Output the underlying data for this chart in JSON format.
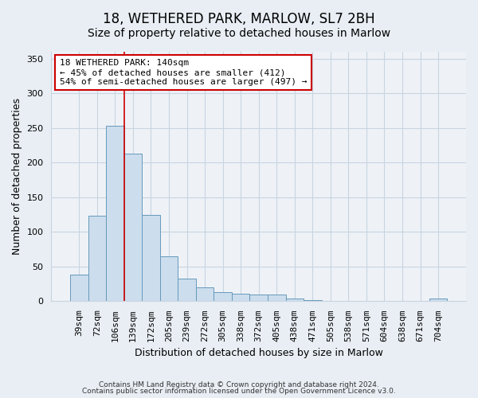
{
  "title": "18, WETHERED PARK, MARLOW, SL7 2BH",
  "subtitle": "Size of property relative to detached houses in Marlow",
  "xlabel": "Distribution of detached houses by size in Marlow",
  "ylabel": "Number of detached properties",
  "categories": [
    "39sqm",
    "72sqm",
    "106sqm",
    "139sqm",
    "172sqm",
    "205sqm",
    "239sqm",
    "272sqm",
    "305sqm",
    "338sqm",
    "372sqm",
    "405sqm",
    "438sqm",
    "471sqm",
    "505sqm",
    "538sqm",
    "571sqm",
    "604sqm",
    "638sqm",
    "671sqm",
    "704sqm"
  ],
  "values": [
    38,
    123,
    253,
    213,
    124,
    65,
    33,
    20,
    13,
    11,
    10,
    10,
    4,
    2,
    1,
    0,
    0,
    0,
    0,
    0,
    4
  ],
  "bar_facecolor": "#ccdded",
  "bar_edgecolor": "#6699bb",
  "vline_x_idx": 2.5,
  "vline_color": "#cc0000",
  "annotation_text": "18 WETHERED PARK: 140sqm\n← 45% of detached houses are smaller (412)\n54% of semi-detached houses are larger (497) →",
  "annotation_box_facecolor": "#ffffff",
  "annotation_box_edgecolor": "#cc0000",
  "ylim": [
    0,
    360
  ],
  "yticks": [
    0,
    50,
    100,
    150,
    200,
    250,
    300,
    350
  ],
  "footer_line1": "Contains HM Land Registry data © Crown copyright and database right 2024.",
  "footer_line2": "Contains public sector information licensed under the Open Government Licence v3.0.",
  "bg_color": "#e8eef4",
  "plot_bg_color": "#eef2f7",
  "grid_color": "#c8d4e0",
  "title_fontsize": 12,
  "subtitle_fontsize": 10,
  "ylabel_fontsize": 9,
  "xlabel_fontsize": 9,
  "tick_fontsize": 8,
  "annotation_fontsize": 8,
  "footer_fontsize": 6.5
}
